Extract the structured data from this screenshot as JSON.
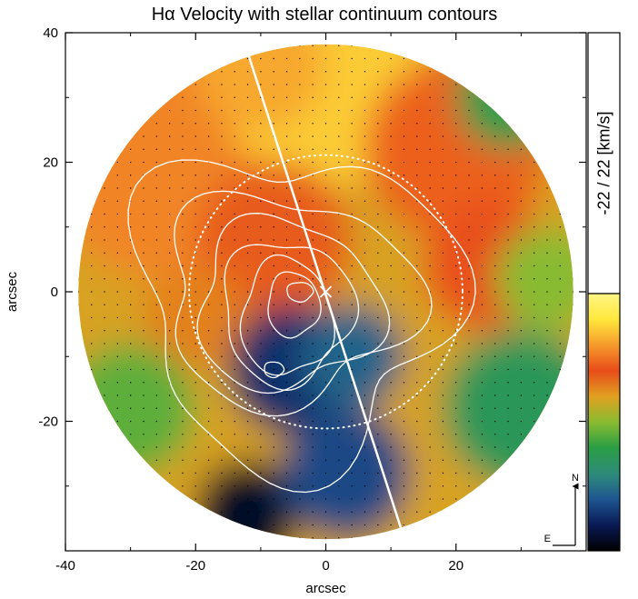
{
  "chart_data": {
    "type": "heatmap",
    "title": "Hα Velocity with stellar continuum contours",
    "xlabel": "arcsec",
    "ylabel": "arcsec",
    "xlim": [
      -40,
      40
    ],
    "ylim": [
      -40,
      40
    ],
    "x_ticks": [
      -40,
      -20,
      0,
      20
    ],
    "y_ticks": [
      40,
      20,
      0,
      -20
    ],
    "field_shape": "circular",
    "field_radius_arcsec": 38,
    "colorbar": {
      "label": "-22  /  22   [km/s]",
      "range": [
        -22,
        22
      ],
      "unit": "km/s",
      "colormap": [
        "#000000",
        "#0a1a55",
        "#1e5590",
        "#2e8c7a",
        "#2a9e45",
        "#88bb30",
        "#e0a020",
        "#e84c1a",
        "#f59a2b",
        "#ffe83c",
        "#fff585"
      ]
    },
    "compass": {
      "north": "N",
      "east": "E"
    },
    "slit_line": {
      "x": [
        -12.5,
        12.5
      ],
      "y": [
        38.5,
        -39.5
      ]
    },
    "dotted_circle": {
      "center": [
        0,
        0
      ],
      "radius": 21
    },
    "center_marker": [
      0,
      0
    ],
    "velocity_patches": [
      {
        "x": 0,
        "y": 0,
        "v": 4,
        "r": 40
      },
      {
        "x": -25,
        "y": 20,
        "v": 12,
        "r": 18
      },
      {
        "x": 0,
        "y": 32,
        "v": 16,
        "r": 16
      },
      {
        "x": -10,
        "y": 35,
        "v": 14,
        "r": 10
      },
      {
        "x": 20,
        "y": 22,
        "v": 10,
        "r": 14
      },
      {
        "x": 25,
        "y": 4,
        "v": 9,
        "r": 10
      },
      {
        "x": -8,
        "y": 8,
        "v": 8,
        "r": 12
      },
      {
        "x": -20,
        "y": -4,
        "v": 6,
        "r": 8
      },
      {
        "x": -5,
        "y": -12,
        "v": -16,
        "r": 10
      },
      {
        "x": 4,
        "y": -10,
        "v": -12,
        "r": 8
      },
      {
        "x": -12,
        "y": -34,
        "v": -20,
        "r": 8
      },
      {
        "x": 3,
        "y": -28,
        "v": -14,
        "r": 10
      },
      {
        "x": 30,
        "y": -18,
        "v": -6,
        "r": 12
      },
      {
        "x": 28,
        "y": 30,
        "v": -5,
        "r": 8
      },
      {
        "x": 34,
        "y": 2,
        "v": 0,
        "r": 8
      },
      {
        "x": -30,
        "y": -18,
        "v": -2,
        "r": 10
      }
    ]
  }
}
